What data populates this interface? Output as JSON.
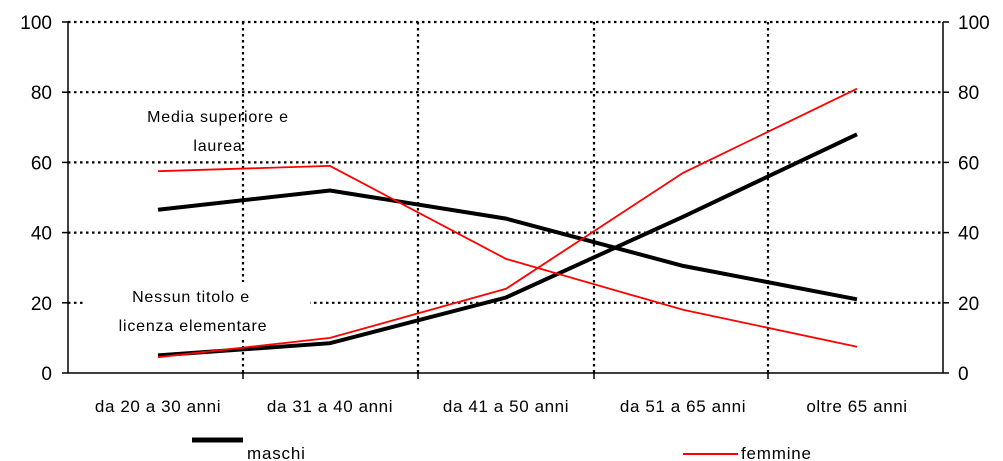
{
  "chart_data": {
    "type": "line",
    "categories": [
      "da 20 a 30 anni",
      "da 31 a 40 anni",
      "da 41 a 50 anni",
      "da 51 a 65 anni",
      "oltre 65 anni"
    ],
    "ylim": [
      0,
      100
    ],
    "yticks": [
      "0",
      "20",
      "40",
      "60",
      "80",
      "100"
    ],
    "secondary_y_axis": true,
    "grid": "dotted",
    "legend_position": "bottom",
    "colors": {
      "maschi": "#000000",
      "femmine": "#ff0000"
    },
    "annotations": {
      "upper": [
        "Media superiore e",
        "laurea"
      ],
      "lower": [
        "Nessun titolo e",
        "licenza elementare"
      ]
    },
    "series": [
      {
        "name": "maschi",
        "group": "media superiore e laurea",
        "values": [
          46.5,
          52,
          44,
          30.5,
          21
        ]
      },
      {
        "name": "maschi",
        "group": "nessun titolo e licenza elementare",
        "values": [
          5,
          8.5,
          21.5,
          44.5,
          68
        ]
      },
      {
        "name": "femmine",
        "group": "media superiore e laurea",
        "values": [
          57.5,
          59,
          32.5,
          18,
          7.5
        ]
      },
      {
        "name": "femmine",
        "group": "nessun titolo e licenza elementare",
        "values": [
          4.5,
          10,
          24,
          57,
          81
        ]
      }
    ],
    "legend": [
      {
        "label": "maschi",
        "series": "maschi"
      },
      {
        "label": "femmine",
        "series": "femmine"
      }
    ]
  }
}
